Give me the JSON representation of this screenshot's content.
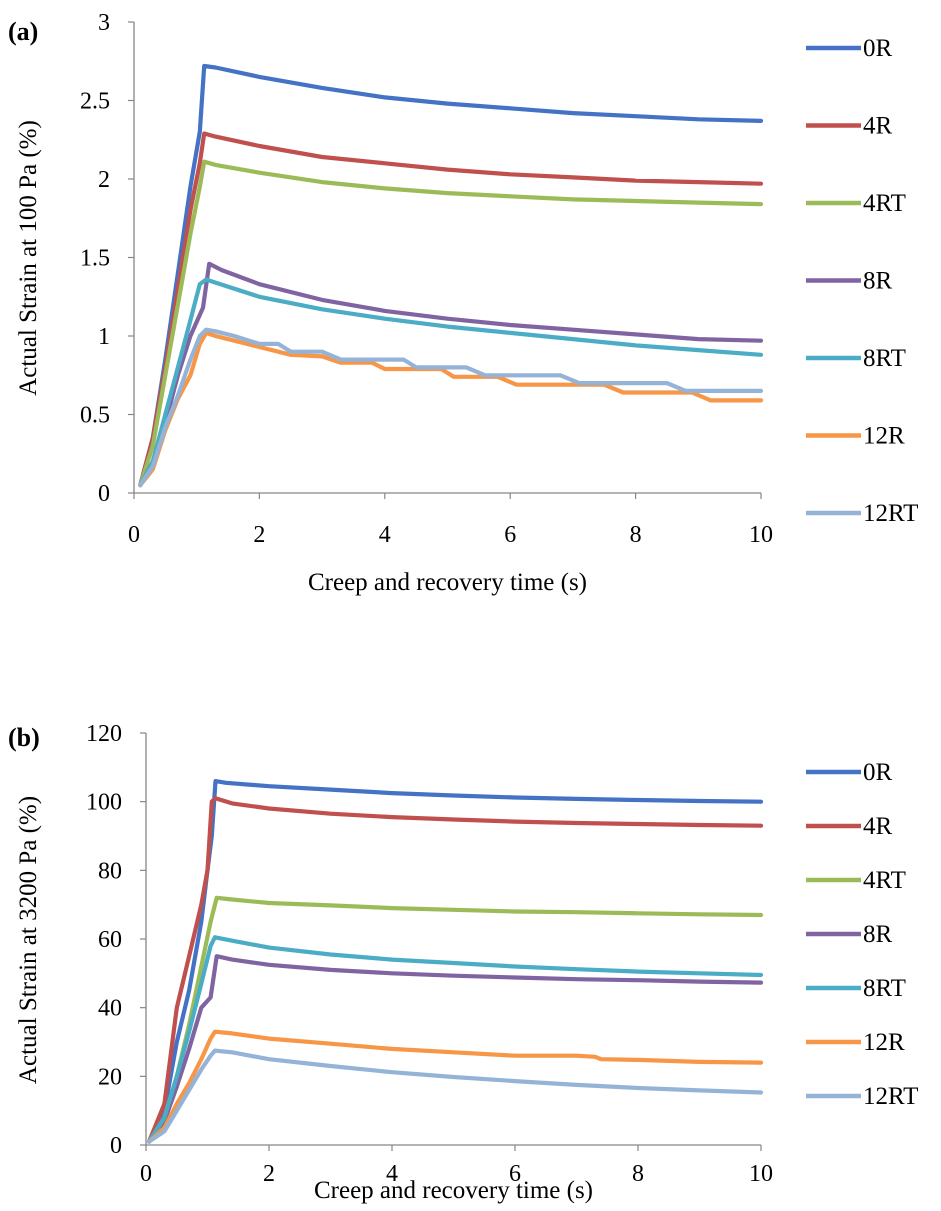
{
  "chart_data": [
    {
      "type": "line",
      "panel_label": "(a)",
      "xlabel": "Creep and recovery time (s)",
      "ylabel": "Actual Strain at 100 Pa  (%)",
      "xlim": [
        0,
        10
      ],
      "ylim": [
        0,
        3
      ],
      "xticks": [
        0,
        2,
        4,
        6,
        8,
        10
      ],
      "yticks": [
        0,
        0.5,
        1,
        1.5,
        2,
        2.5,
        3
      ],
      "ytick_labels": [
        "0",
        "0.5",
        "1",
        "1.5",
        "2",
        "2.5",
        "3"
      ],
      "grid": false,
      "legend_position": "right",
      "series": [
        {
          "name": "0R",
          "color": "#4472C4",
          "points": [
            [
              0.1,
              0.05
            ],
            [
              0.3,
              0.35
            ],
            [
              0.5,
              0.85
            ],
            [
              0.7,
              1.4
            ],
            [
              0.9,
              1.95
            ],
            [
              1.05,
              2.3
            ],
            [
              1.12,
              2.72
            ],
            [
              1.3,
              2.71
            ],
            [
              2,
              2.65
            ],
            [
              3,
              2.58
            ],
            [
              4,
              2.52
            ],
            [
              5,
              2.48
            ],
            [
              6,
              2.45
            ],
            [
              7,
              2.42
            ],
            [
              8,
              2.4
            ],
            [
              9,
              2.38
            ],
            [
              10,
              2.37
            ]
          ]
        },
        {
          "name": "4R",
          "color": "#C0504D",
          "points": [
            [
              0.1,
              0.05
            ],
            [
              0.3,
              0.35
            ],
            [
              0.5,
              0.8
            ],
            [
              0.7,
              1.3
            ],
            [
              0.9,
              1.8
            ],
            [
              1.05,
              2.1
            ],
            [
              1.12,
              2.29
            ],
            [
              1.3,
              2.27
            ],
            [
              2,
              2.21
            ],
            [
              3,
              2.14
            ],
            [
              4,
              2.1
            ],
            [
              5,
              2.06
            ],
            [
              6,
              2.03
            ],
            [
              7,
              2.01
            ],
            [
              8,
              1.99
            ],
            [
              9,
              1.98
            ],
            [
              10,
              1.97
            ]
          ]
        },
        {
          "name": "4RT",
          "color": "#9BBB59",
          "points": [
            [
              0.1,
              0.05
            ],
            [
              0.3,
              0.3
            ],
            [
              0.5,
              0.75
            ],
            [
              0.7,
              1.2
            ],
            [
              0.9,
              1.65
            ],
            [
              1.05,
              1.95
            ],
            [
              1.12,
              2.11
            ],
            [
              1.3,
              2.09
            ],
            [
              2,
              2.04
            ],
            [
              3,
              1.98
            ],
            [
              4,
              1.94
            ],
            [
              5,
              1.91
            ],
            [
              6,
              1.89
            ],
            [
              7,
              1.87
            ],
            [
              8,
              1.86
            ],
            [
              9,
              1.85
            ],
            [
              10,
              1.84
            ]
          ]
        },
        {
          "name": "8R",
          "color": "#8064A2",
          "points": [
            [
              0.1,
              0.05
            ],
            [
              0.3,
              0.2
            ],
            [
              0.5,
              0.45
            ],
            [
              0.7,
              0.75
            ],
            [
              0.9,
              1.0
            ],
            [
              1.1,
              1.18
            ],
            [
              1.2,
              1.46
            ],
            [
              1.4,
              1.42
            ],
            [
              2,
              1.33
            ],
            [
              3,
              1.23
            ],
            [
              4,
              1.16
            ],
            [
              5,
              1.11
            ],
            [
              6,
              1.07
            ],
            [
              7,
              1.04
            ],
            [
              8,
              1.01
            ],
            [
              9,
              0.98
            ],
            [
              10,
              0.97
            ]
          ]
        },
        {
          "name": "8RT",
          "color": "#4BACC6",
          "points": [
            [
              0.1,
              0.05
            ],
            [
              0.3,
              0.2
            ],
            [
              0.5,
              0.5
            ],
            [
              0.7,
              0.8
            ],
            [
              0.9,
              1.1
            ],
            [
              1.05,
              1.33
            ],
            [
              1.15,
              1.36
            ],
            [
              1.3,
              1.34
            ],
            [
              2,
              1.25
            ],
            [
              3,
              1.17
            ],
            [
              4,
              1.11
            ],
            [
              5,
              1.06
            ],
            [
              6,
              1.02
            ],
            [
              7,
              0.98
            ],
            [
              8,
              0.94
            ],
            [
              9,
              0.91
            ],
            [
              10,
              0.88
            ]
          ]
        },
        {
          "name": "12R",
          "color": "#F79646",
          "points": [
            [
              0.1,
              0.05
            ],
            [
              0.3,
              0.15
            ],
            [
              0.5,
              0.4
            ],
            [
              0.7,
              0.6
            ],
            [
              0.9,
              0.75
            ],
            [
              1.05,
              0.95
            ],
            [
              1.15,
              1.02
            ],
            [
              1.3,
              1.0
            ],
            [
              1.6,
              0.97
            ],
            [
              2,
              0.93
            ],
            [
              2.5,
              0.88
            ],
            [
              3,
              0.87
            ],
            [
              3.3,
              0.83
            ],
            [
              3.8,
              0.83
            ],
            [
              4,
              0.79
            ],
            [
              4.9,
              0.79
            ],
            [
              5.1,
              0.74
            ],
            [
              5.8,
              0.74
            ],
            [
              6.1,
              0.69
            ],
            [
              7.0,
              0.69
            ],
            [
              7.5,
              0.69
            ],
            [
              7.8,
              0.64
            ],
            [
              8.9,
              0.64
            ],
            [
              9.2,
              0.59
            ],
            [
              10,
              0.59
            ]
          ]
        },
        {
          "name": "12RT",
          "color": "#95B3D7",
          "points": [
            [
              0.1,
              0.05
            ],
            [
              0.3,
              0.17
            ],
            [
              0.5,
              0.42
            ],
            [
              0.7,
              0.62
            ],
            [
              0.9,
              0.85
            ],
            [
              1.05,
              1.0
            ],
            [
              1.15,
              1.04
            ],
            [
              1.3,
              1.03
            ],
            [
              1.6,
              1.0
            ],
            [
              2,
              0.95
            ],
            [
              2.3,
              0.95
            ],
            [
              2.5,
              0.9
            ],
            [
              3,
              0.9
            ],
            [
              3.3,
              0.85
            ],
            [
              3.9,
              0.85
            ],
            [
              4.3,
              0.85
            ],
            [
              4.5,
              0.8
            ],
            [
              5.3,
              0.8
            ],
            [
              5.6,
              0.75
            ],
            [
              6.8,
              0.75
            ],
            [
              7.1,
              0.7
            ],
            [
              8.5,
              0.7
            ],
            [
              8.8,
              0.65
            ],
            [
              10,
              0.65
            ]
          ]
        }
      ]
    },
    {
      "type": "line",
      "panel_label": "(b)",
      "xlabel": "Creep and recovery time (s)",
      "ylabel": "Actual Strain at 3200 Pa (%)",
      "xlim": [
        0,
        10
      ],
      "ylim": [
        0,
        120
      ],
      "xticks": [
        0,
        2,
        4,
        6,
        8,
        10
      ],
      "yticks": [
        0,
        20,
        40,
        60,
        80,
        100,
        120
      ],
      "ytick_labels": [
        "0",
        "20",
        "40",
        "60",
        "80",
        "100",
        "120"
      ],
      "grid": false,
      "legend_position": "right",
      "series": [
        {
          "name": "0R",
          "color": "#4472C4",
          "points": [
            [
              0.05,
              1
            ],
            [
              0.3,
              10
            ],
            [
              0.5,
              30
            ],
            [
              0.7,
              45
            ],
            [
              0.9,
              65
            ],
            [
              1.0,
              80
            ],
            [
              1.07,
              90
            ],
            [
              1.13,
              106
            ],
            [
              1.3,
              105.5
            ],
            [
              2,
              104.5
            ],
            [
              3,
              103.5
            ],
            [
              4,
              102.5
            ],
            [
              5,
              101.8
            ],
            [
              6,
              101.2
            ],
            [
              7,
              100.8
            ],
            [
              8,
              100.5
            ],
            [
              9,
              100.2
            ],
            [
              10,
              100
            ]
          ]
        },
        {
          "name": "4R",
          "color": "#C0504D",
          "points": [
            [
              0.05,
              1
            ],
            [
              0.3,
              12
            ],
            [
              0.5,
              40
            ],
            [
              0.7,
              55
            ],
            [
              0.9,
              70
            ],
            [
              1.0,
              80
            ],
            [
              1.07,
              100
            ],
            [
              1.13,
              101
            ],
            [
              1.4,
              99.5
            ],
            [
              2,
              98
            ],
            [
              3,
              96.5
            ],
            [
              4,
              95.5
            ],
            [
              5,
              94.8
            ],
            [
              6,
              94.2
            ],
            [
              7,
              93.8
            ],
            [
              8,
              93.5
            ],
            [
              9,
              93.2
            ],
            [
              10,
              93
            ]
          ]
        },
        {
          "name": "4RT",
          "color": "#9BBB59",
          "points": [
            [
              0.05,
              1
            ],
            [
              0.3,
              8
            ],
            [
              0.5,
              20
            ],
            [
              0.7,
              35
            ],
            [
              0.9,
              52
            ],
            [
              1.05,
              65
            ],
            [
              1.15,
              72
            ],
            [
              1.4,
              71.5
            ],
            [
              2,
              70.5
            ],
            [
              3,
              69.8
            ],
            [
              4,
              69
            ],
            [
              5,
              68.5
            ],
            [
              6,
              68
            ],
            [
              7,
              67.8
            ],
            [
              8,
              67.5
            ],
            [
              9,
              67.2
            ],
            [
              10,
              67
            ]
          ]
        },
        {
          "name": "8R",
          "color": "#8064A2",
          "points": [
            [
              0.05,
              1
            ],
            [
              0.3,
              7
            ],
            [
              0.5,
              17
            ],
            [
              0.7,
              28
            ],
            [
              0.9,
              40
            ],
            [
              1.05,
              43
            ],
            [
              1.15,
              55
            ],
            [
              1.4,
              54
            ],
            [
              2,
              52.5
            ],
            [
              3,
              51
            ],
            [
              4,
              50
            ],
            [
              5,
              49.3
            ],
            [
              6,
              48.8
            ],
            [
              7,
              48.3
            ],
            [
              8,
              48
            ],
            [
              9,
              47.6
            ],
            [
              10,
              47.3
            ]
          ]
        },
        {
          "name": "8RT",
          "color": "#4BACC6",
          "points": [
            [
              0.05,
              1
            ],
            [
              0.3,
              8
            ],
            [
              0.5,
              20
            ],
            [
              0.7,
              33
            ],
            [
              0.9,
              47
            ],
            [
              1.05,
              58
            ],
            [
              1.12,
              60.5
            ],
            [
              1.4,
              59.5
            ],
            [
              2,
              57.5
            ],
            [
              3,
              55.5
            ],
            [
              4,
              54
            ],
            [
              5,
              53
            ],
            [
              6,
              52
            ],
            [
              7,
              51.2
            ],
            [
              8,
              50.5
            ],
            [
              9,
              50
            ],
            [
              10,
              49.5
            ]
          ]
        },
        {
          "name": "12R",
          "color": "#F79646",
          "points": [
            [
              0.05,
              1
            ],
            [
              0.3,
              5
            ],
            [
              0.5,
              12
            ],
            [
              0.7,
              18
            ],
            [
              0.9,
              25
            ],
            [
              1.05,
              31
            ],
            [
              1.12,
              33
            ],
            [
              1.4,
              32.5
            ],
            [
              2,
              31
            ],
            [
              3,
              29.5
            ],
            [
              4,
              28
            ],
            [
              5,
              27
            ],
            [
              6,
              26
            ],
            [
              7,
              26
            ],
            [
              7.3,
              25.7
            ],
            [
              7.4,
              25
            ],
            [
              8,
              24.8
            ],
            [
              9,
              24.2
            ],
            [
              10,
              24
            ]
          ]
        },
        {
          "name": "12RT",
          "color": "#95B3D7",
          "points": [
            [
              0.05,
              1
            ],
            [
              0.3,
              4
            ],
            [
              0.5,
              10
            ],
            [
              0.7,
              16
            ],
            [
              0.9,
              22
            ],
            [
              1.05,
              26
            ],
            [
              1.12,
              27.5
            ],
            [
              1.4,
              27
            ],
            [
              2,
              25
            ],
            [
              3,
              23
            ],
            [
              4,
              21.2
            ],
            [
              5,
              19.8
            ],
            [
              6,
              18.6
            ],
            [
              7,
              17.5
            ],
            [
              8,
              16.6
            ],
            [
              9,
              15.9
            ],
            [
              10,
              15.3
            ]
          ]
        }
      ]
    }
  ]
}
